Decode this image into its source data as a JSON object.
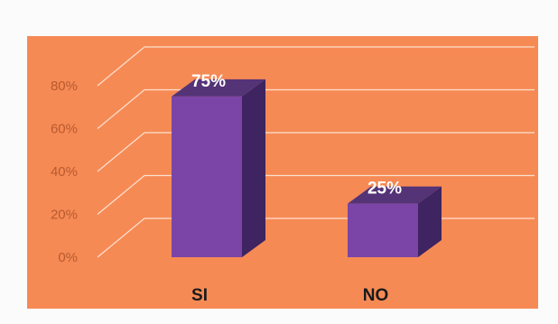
{
  "chart_data": {
    "type": "bar",
    "categories": [
      "SI",
      "NO"
    ],
    "values": [
      75,
      25
    ],
    "data_labels": [
      "75%",
      "25%"
    ],
    "yticks": [
      "0%",
      "20%",
      "40%",
      "60%",
      "80%"
    ],
    "ytick_values": [
      0,
      20,
      40,
      60,
      80
    ],
    "ylim": [
      0,
      80
    ],
    "grid": true,
    "style": "3d",
    "colors": {
      "background": "#f68a55",
      "bar_front": "#7a45a6",
      "bar_top": "#543377",
      "bar_side": "#3e2460",
      "grid": "#fde0cf",
      "tick_text": "#b85a2e"
    }
  }
}
